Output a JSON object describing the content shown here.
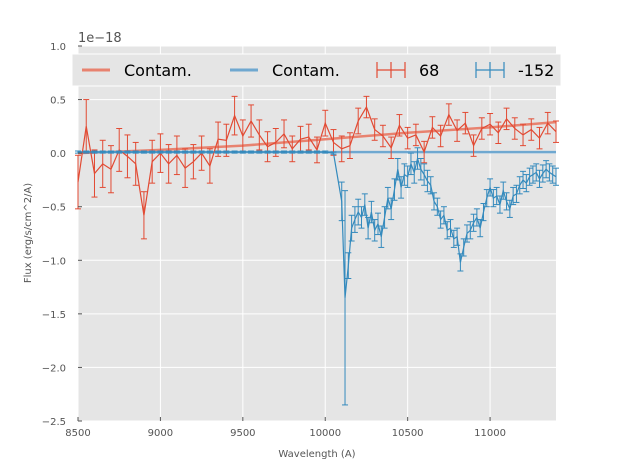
{
  "chart_data": {
    "type": "line",
    "title": "",
    "xlabel": "Wavelength (A)",
    "ylabel": "Flux (erg/s/cm^2/A)",
    "offset_label": "1e−18",
    "xlim": [
      8500,
      11400
    ],
    "ylim": [
      -2.5,
      1.0
    ],
    "x_ticks": [
      8500,
      9000,
      9500,
      10000,
      10500,
      11000
    ],
    "x_tick_labels": [
      "8500",
      "9000",
      "9500",
      "10000",
      "10500",
      "11000"
    ],
    "y_ticks": [
      -2.5,
      -2.0,
      -1.5,
      -1.0,
      -0.5,
      0.0,
      0.5,
      1.0
    ],
    "y_tick_labels": [
      "−2.5",
      "−2.0",
      "−1.5",
      "−1.0",
      "−0.5",
      "0.0",
      "0.5",
      "1.0"
    ],
    "grid": true,
    "legend_position": "top",
    "colors": {
      "red": "#e24a33",
      "blue": "#348abd",
      "red_light": "#e8826f",
      "blue_light": "#6fa8d0",
      "background": "#e5e5e5"
    },
    "series": [
      {
        "name": "Contam.",
        "kind": "line",
        "color": "#e8826f",
        "x": [
          8500,
          9000,
          9500,
          10000,
          10500,
          11000,
          11400
        ],
        "y": [
          0.0,
          0.03,
          0.07,
          0.13,
          0.19,
          0.24,
          0.29
        ]
      },
      {
        "name": "Contam.",
        "kind": "line",
        "color": "#6fa8d0",
        "x": [
          8500,
          9000,
          9500,
          10000,
          10500,
          11000,
          11400
        ],
        "y": [
          0.01,
          0.01,
          0.01,
          0.01,
          0.01,
          0.01,
          0.01
        ]
      },
      {
        "name": "68",
        "kind": "errorbar",
        "color": "#e24a33",
        "x": [
          8500,
          8550,
          8600,
          8650,
          8700,
          8750,
          8800,
          8850,
          8900,
          8950,
          9000,
          9050,
          9100,
          9150,
          9200,
          9250,
          9300,
          9350,
          9400,
          9450,
          9500,
          9550,
          9600,
          9650,
          9700,
          9750,
          9800,
          9850,
          9900,
          9950,
          10000,
          10050,
          10100,
          10150,
          10200,
          10250,
          10300,
          10350,
          10400,
          10450,
          10500,
          10550,
          10600,
          10650,
          10700,
          10750,
          10800,
          10850,
          10900,
          10950,
          11000,
          11050,
          11100,
          11150,
          11200,
          11250,
          11300,
          11350,
          11400
        ],
        "y": [
          -0.27,
          0.25,
          -0.19,
          -0.1,
          -0.15,
          0.03,
          -0.03,
          -0.1,
          -0.58,
          -0.08,
          0.0,
          -0.1,
          -0.02,
          -0.14,
          -0.08,
          0.0,
          -0.12,
          0.13,
          0.12,
          0.35,
          0.16,
          0.3,
          0.17,
          0.06,
          0.1,
          0.18,
          0.04,
          0.13,
          0.15,
          0.03,
          0.28,
          0.1,
          0.04,
          0.07,
          0.3,
          0.43,
          0.22,
          0.16,
          0.05,
          0.26,
          0.14,
          0.17,
          0.01,
          0.24,
          0.16,
          0.36,
          0.21,
          0.28,
          0.07,
          0.23,
          0.27,
          0.19,
          0.32,
          0.23,
          0.17,
          0.22,
          0.14,
          0.28,
          0.2
        ],
        "yerr": [
          0.25,
          0.25,
          0.22,
          0.22,
          0.22,
          0.2,
          0.2,
          0.2,
          0.22,
          0.2,
          0.18,
          0.18,
          0.18,
          0.18,
          0.16,
          0.16,
          0.16,
          0.16,
          0.15,
          0.18,
          0.15,
          0.15,
          0.14,
          0.14,
          0.13,
          0.13,
          0.12,
          0.12,
          0.12,
          0.12,
          0.12,
          0.12,
          0.12,
          0.12,
          0.12,
          0.1,
          0.1,
          0.1,
          0.1,
          0.1,
          0.1,
          0.1,
          0.1,
          0.1,
          0.1,
          0.1,
          0.1,
          0.1,
          0.1,
          0.1,
          0.1,
          0.1,
          0.1,
          0.1,
          0.1,
          0.1,
          0.1,
          0.1,
          0.1
        ]
      },
      {
        "name": "-152",
        "kind": "errorbar",
        "color": "#348abd",
        "x": [
          8500,
          8550,
          8600,
          8650,
          8700,
          8750,
          8800,
          8850,
          8900,
          8950,
          9000,
          9050,
          9100,
          9150,
          9200,
          9250,
          9300,
          9350,
          9400,
          9450,
          9500,
          9550,
          9600,
          9650,
          9700,
          9750,
          9800,
          9850,
          9900,
          9950,
          10000,
          10050,
          10100,
          10120,
          10140,
          10160,
          10180,
          10200,
          10220,
          10240,
          10260,
          10280,
          10300,
          10320,
          10340,
          10360,
          10380,
          10400,
          10420,
          10440,
          10460,
          10480,
          10500,
          10520,
          10540,
          10560,
          10580,
          10600,
          10620,
          10640,
          10660,
          10680,
          10700,
          10720,
          10740,
          10760,
          10780,
          10800,
          10820,
          10840,
          10860,
          10880,
          10900,
          10920,
          10940,
          10960,
          10980,
          11000,
          11020,
          11040,
          11060,
          11080,
          11100,
          11120,
          11140,
          11160,
          11180,
          11200,
          11220,
          11240,
          11260,
          11280,
          11300,
          11320,
          11340,
          11360,
          11380,
          11400
        ],
        "y": [
          0.01,
          0.01,
          0.01,
          0.01,
          0.01,
          0.01,
          0.01,
          0.01,
          0.01,
          0.01,
          0.01,
          0.01,
          0.01,
          0.01,
          0.01,
          0.01,
          0.01,
          0.01,
          0.01,
          0.01,
          0.01,
          0.01,
          0.01,
          0.01,
          0.01,
          0.01,
          0.01,
          0.01,
          0.01,
          0.01,
          0.01,
          0.0,
          -0.45,
          -1.35,
          -1.05,
          -0.7,
          -0.62,
          -0.55,
          -0.6,
          -0.48,
          -0.7,
          -0.55,
          -0.72,
          -0.66,
          -0.78,
          -0.6,
          -0.42,
          -0.52,
          -0.34,
          -0.15,
          -0.32,
          -0.2,
          -0.22,
          -0.1,
          -0.18,
          -0.05,
          -0.15,
          -0.2,
          -0.26,
          -0.3,
          -0.45,
          -0.5,
          -0.62,
          -0.58,
          -0.72,
          -0.7,
          -0.8,
          -0.78,
          -1.02,
          -0.88,
          -0.75,
          -0.72,
          -0.65,
          -0.6,
          -0.7,
          -0.55,
          -0.42,
          -0.32,
          -0.42,
          -0.4,
          -0.48,
          -0.35,
          -0.45,
          -0.52,
          -0.4,
          -0.38,
          -0.3,
          -0.25,
          -0.28,
          -0.22,
          -0.2,
          -0.18,
          -0.24,
          -0.19,
          -0.15,
          -0.18,
          -0.2,
          -0.22
        ],
        "yerr": [
          0.01,
          0.01,
          0.01,
          0.01,
          0.01,
          0.01,
          0.01,
          0.01,
          0.01,
          0.01,
          0.01,
          0.01,
          0.01,
          0.01,
          0.01,
          0.01,
          0.01,
          0.01,
          0.01,
          0.01,
          0.01,
          0.01,
          0.01,
          0.01,
          0.01,
          0.01,
          0.01,
          0.01,
          0.01,
          0.01,
          0.01,
          0.01,
          0.18,
          1.0,
          0.12,
          0.12,
          0.12,
          0.12,
          0.1,
          0.1,
          0.1,
          0.1,
          0.1,
          0.1,
          0.1,
          0.1,
          0.1,
          0.1,
          0.1,
          0.1,
          0.1,
          0.1,
          0.1,
          0.1,
          0.1,
          0.1,
          0.1,
          0.1,
          0.1,
          0.08,
          0.08,
          0.08,
          0.08,
          0.08,
          0.08,
          0.08,
          0.08,
          0.08,
          0.08,
          0.08,
          0.08,
          0.08,
          0.08,
          0.08,
          0.08,
          0.08,
          0.08,
          0.08,
          0.08,
          0.08,
          0.08,
          0.08,
          0.08,
          0.08,
          0.08,
          0.08,
          0.08,
          0.08,
          0.08,
          0.08,
          0.08,
          0.08,
          0.08,
          0.08,
          0.08,
          0.08,
          0.08,
          0.08
        ]
      }
    ]
  }
}
